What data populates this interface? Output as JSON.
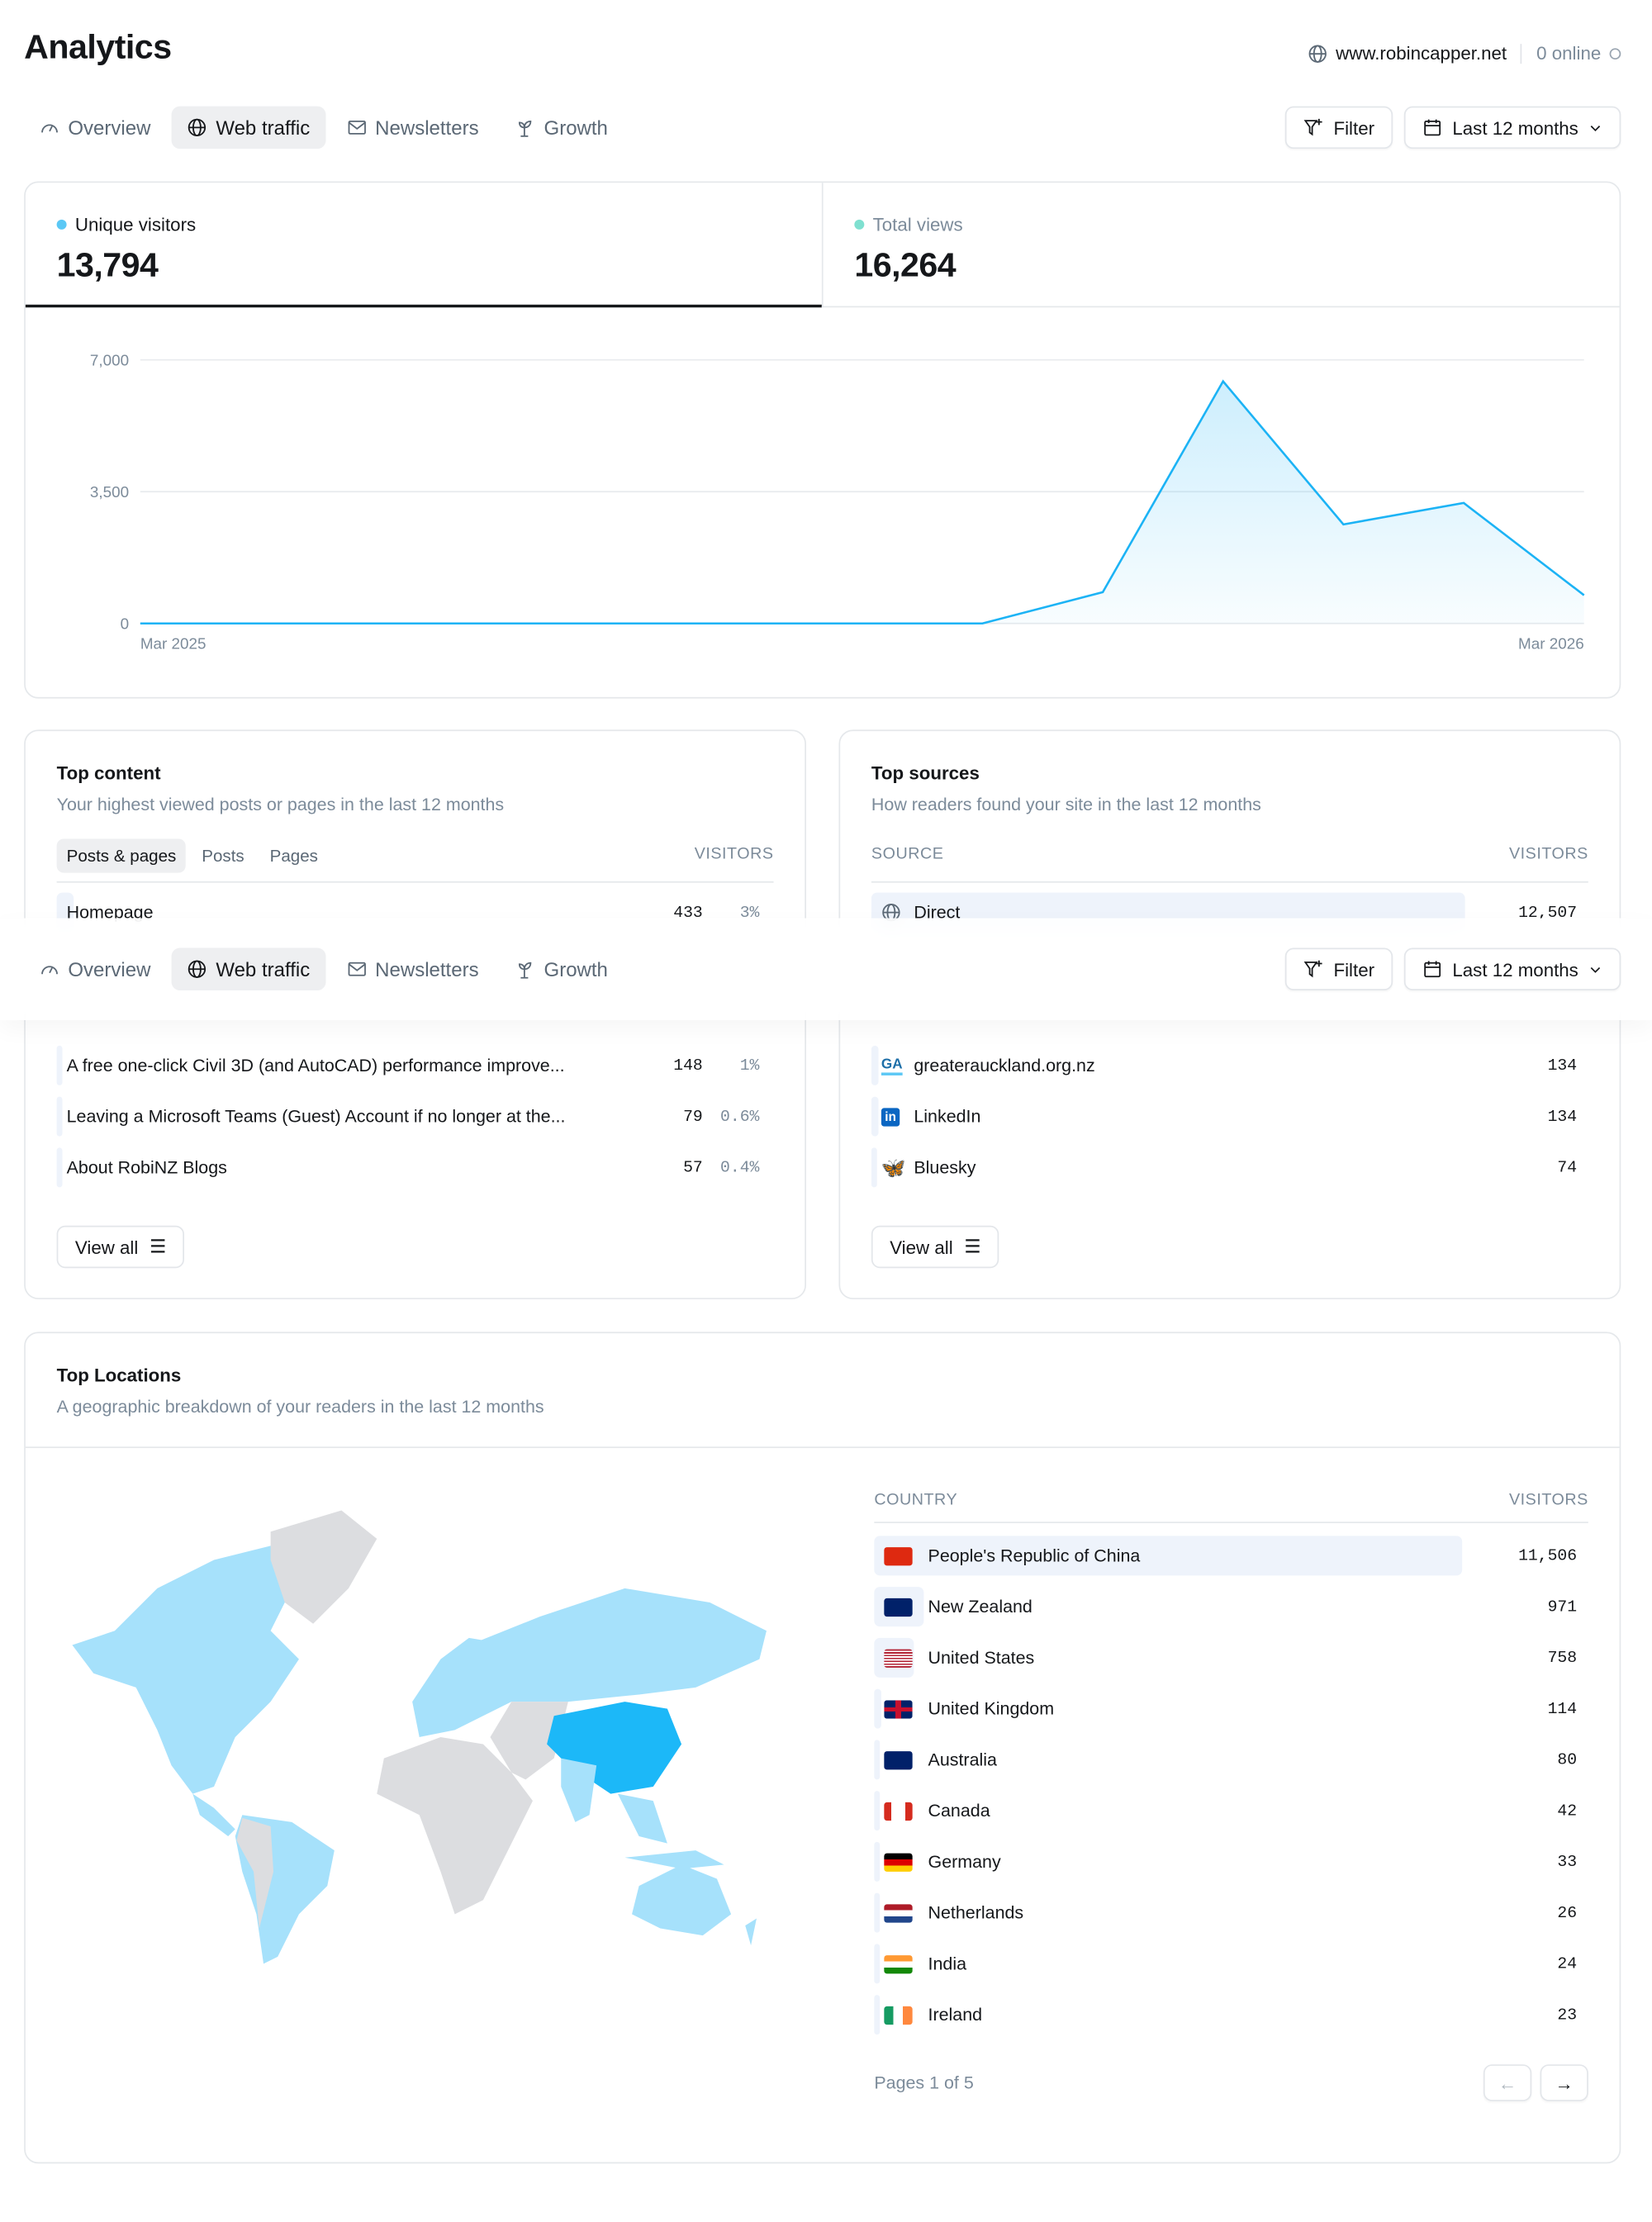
{
  "header": {
    "title": "Analytics",
    "site": "www.robincapper.net",
    "online": "0 online"
  },
  "tabs": [
    {
      "label": "Overview",
      "icon": "gauge-icon"
    },
    {
      "label": "Web traffic",
      "icon": "globe-icon",
      "active": true
    },
    {
      "label": "Newsletters",
      "icon": "mail-icon"
    },
    {
      "label": "Growth",
      "icon": "sprout-icon"
    }
  ],
  "toolbar": {
    "filter": "Filter",
    "range": "Last 12 months"
  },
  "kpis": [
    {
      "label": "Unique visitors",
      "value": "13,794",
      "color": "#5bc8f5"
    },
    {
      "label": "Total views",
      "value": "16,264",
      "color": "#7fe0d0"
    }
  ],
  "chart_data": {
    "type": "area",
    "series": [
      {
        "name": "Unique visitors",
        "values": [
          0,
          0,
          0,
          0,
          0,
          0,
          0,
          0,
          830,
          6430,
          2630,
          3200,
          750
        ]
      }
    ],
    "x_labels": [
      "Mar 2025",
      "Mar 2026"
    ],
    "yticks": [
      "7,000",
      "3,500",
      "0"
    ],
    "ylim": [
      0,
      7000
    ],
    "grid": true,
    "color": "#1cb3f5"
  },
  "top_content": {
    "title": "Top content",
    "subtitle": "Your highest viewed posts or pages in the last 12 months",
    "filters": [
      "Posts & pages",
      "Posts",
      "Pages"
    ],
    "col": "VISITORS",
    "rows": [
      {
        "title": "Homepage",
        "visitors": "433",
        "pct": "3%",
        "share": 0.03
      },
      {
        "title": "A free one-click Civil 3D (and AutoCAD) performance improve...",
        "visitors": "148",
        "pct": "1%",
        "share": 0.01
      },
      {
        "title": "Leaving a Microsoft Teams (Guest) Account if no longer at the...",
        "visitors": "79",
        "pct": "0.6%",
        "share": 0.006
      },
      {
        "title": "About RobiNZ Blogs",
        "visitors": "57",
        "pct": "0.4%",
        "share": 0.004
      }
    ],
    "view_all": "View all"
  },
  "top_sources": {
    "title": "Top sources",
    "subtitle": "How readers found your site in the last 12 months",
    "col_source": "SOURCE",
    "col": "VISITORS",
    "rows": [
      {
        "name": "Direct",
        "visitors": "12,507",
        "icon": "globe-icon",
        "share": 0.91
      },
      {
        "name": "greaterauckland.org.nz",
        "visitors": "134",
        "icon": "ga-logo-icon",
        "share": 0.01
      },
      {
        "name": "LinkedIn",
        "visitors": "134",
        "icon": "linkedin-icon",
        "share": 0.01
      },
      {
        "name": "Bluesky",
        "visitors": "74",
        "icon": "bluesky-icon",
        "share": 0.005
      }
    ],
    "view_all": "View all"
  },
  "locations": {
    "title": "Top Locations",
    "subtitle": "A geographic breakdown of your readers in the last 12 months",
    "col_country": "COUNTRY",
    "col": "VISITORS",
    "rows": [
      {
        "name": "People's Republic of China",
        "visitors": "11,506",
        "flag": "cn",
        "share": 0.83
      },
      {
        "name": "New Zealand",
        "visitors": "971",
        "flag": "nz",
        "share": 0.07
      },
      {
        "name": "United States",
        "visitors": "758",
        "flag": "us",
        "share": 0.055
      },
      {
        "name": "United Kingdom",
        "visitors": "114",
        "flag": "gb",
        "share": 0.01
      },
      {
        "name": "Australia",
        "visitors": "80",
        "flag": "au",
        "share": 0.006
      },
      {
        "name": "Canada",
        "visitors": "42",
        "flag": "ca",
        "share": 0
      },
      {
        "name": "Germany",
        "visitors": "33",
        "flag": "de",
        "share": 0
      },
      {
        "name": "Netherlands",
        "visitors": "26",
        "flag": "nl",
        "share": 0
      },
      {
        "name": "India",
        "visitors": "24",
        "flag": "in",
        "share": 0
      },
      {
        "name": "Ireland",
        "visitors": "23",
        "flag": "ie",
        "share": 0
      }
    ],
    "pagination": "Pages 1 of 5"
  }
}
